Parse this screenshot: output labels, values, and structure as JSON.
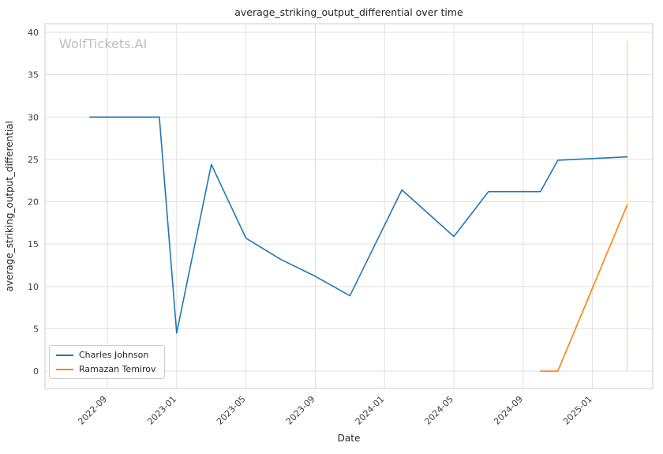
{
  "watermark": "WolfTickets.AI",
  "colors": {
    "grid": "#e0e0e0",
    "plot_border": "#cccccc",
    "tick_text": "#3d3d3d",
    "watermark": "#bdbdbd",
    "background": "#ffffff"
  },
  "chart_data": {
    "type": "line",
    "title": "average_striking_output_differential over time",
    "xlabel": "Date",
    "ylabel": "average_striking_output_differential",
    "grid": true,
    "legend_position": "lower left",
    "x_tick_labels": [
      "2022-09",
      "2023-01",
      "2023-05",
      "2023-09",
      "2024-01",
      "2024-05",
      "2024-09",
      "2025-01"
    ],
    "y_ticks": [
      0,
      5,
      10,
      15,
      20,
      25,
      30,
      35,
      40
    ],
    "xlim_dates": [
      "2022-06",
      "2025-04"
    ],
    "ylim": [
      -2.05,
      41.03
    ],
    "series": [
      {
        "name": "Charles Johnson",
        "color": "#1f77b4",
        "points": [
          [
            "2022-08",
            30.0
          ],
          [
            "2022-12",
            30.0
          ],
          [
            "2023-01",
            4.5
          ],
          [
            "2023-03",
            24.4
          ],
          [
            "2023-05",
            15.7
          ],
          [
            "2023-07",
            13.2
          ],
          [
            "2023-09",
            11.2
          ],
          [
            "2023-11",
            8.9
          ],
          [
            "2024-02",
            21.4
          ],
          [
            "2024-05",
            15.9
          ],
          [
            "2024-07",
            21.2
          ],
          [
            "2024-10",
            21.2
          ],
          [
            "2024-11",
            24.9
          ],
          [
            "2025-03",
            25.3
          ]
        ]
      },
      {
        "name": "Ramazan Temirov",
        "color": "#ff7f0e",
        "points": [
          [
            "2024-10",
            0.0
          ],
          [
            "2024-11",
            0.0
          ],
          [
            "2025-03",
            19.6
          ]
        ]
      }
    ],
    "vline": {
      "x": "2025-03",
      "ymin": 0,
      "ymax": 39,
      "color": "#ffce9e"
    }
  }
}
